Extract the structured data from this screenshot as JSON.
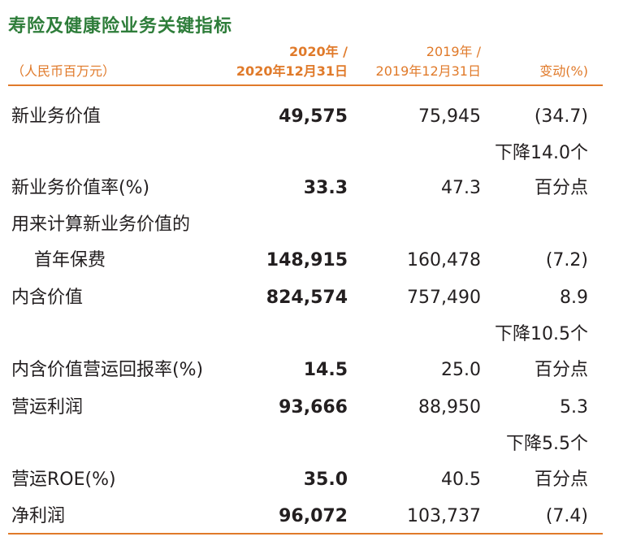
{
  "title": "寿险及健康险业务关键指标",
  "header": {
    "unit": "（人民币百万元）",
    "col2020_line1": "2020年 /",
    "col2020_line2": "2020年12月31日",
    "col2019_line1": "2019年 /",
    "col2019_line2": "2019年12月31日",
    "change": "变动(%)"
  },
  "rows": [
    {
      "label": "新业务价值",
      "v2020": "49,575",
      "v2019": "75,945",
      "change": "(34.7)"
    },
    {
      "change_line1": "下降14.0个",
      "label": "新业务价值率(%)",
      "v2020": "33.3",
      "v2019": "47.3",
      "change": "百分点"
    },
    {
      "label_line1": "用来计算新业务价值的",
      "label": "首年保费",
      "v2020": "148,915",
      "v2019": "160,478",
      "change": "(7.2)"
    },
    {
      "label": "内含价值",
      "v2020": "824,574",
      "v2019": "757,490",
      "change": "8.9"
    },
    {
      "change_line1": "下降10.5个",
      "label": "内含价值营运回报率(%)",
      "v2020": "14.5",
      "v2019": "25.0",
      "change": "百分点"
    },
    {
      "label": "营运利润",
      "v2020": "93,666",
      "v2019": "88,950",
      "change": "5.3"
    },
    {
      "change_line1": "下降5.5个",
      "label": "营运ROE(%)",
      "v2020": "35.0",
      "v2019": "40.5",
      "change": "百分点"
    },
    {
      "label": "净利润",
      "v2020": "96,072",
      "v2019": "103,737",
      "change": "(7.4)"
    }
  ]
}
